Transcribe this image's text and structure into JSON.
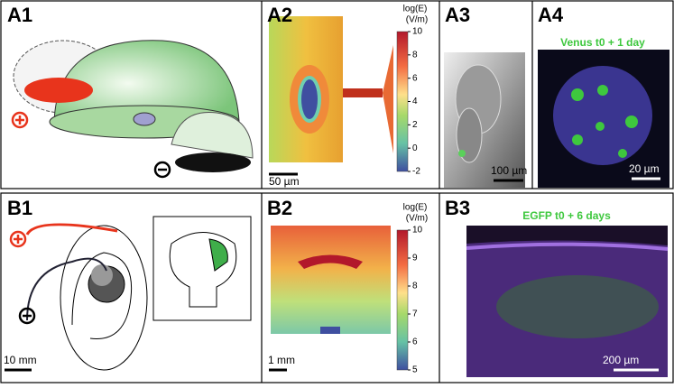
{
  "panels": [
    {
      "label": "A1"
    },
    {
      "label": "A2",
      "scale_bar": "50 µm",
      "colorbar": {
        "title": "log(E)",
        "unit": "(V/m)",
        "ticks": [
          10,
          8,
          6,
          4,
          2,
          0,
          -2
        ]
      }
    },
    {
      "label": "A3",
      "scale_bar": "100 µm"
    },
    {
      "label": "A4",
      "annotation": "Venus t0 + 1 day",
      "scale_bar": "20 µm"
    },
    {
      "label": "B1",
      "scale_bar": "10 mm"
    },
    {
      "label": "B2",
      "scale_bar": "1 mm",
      "colorbar": {
        "title": "log(E)",
        "unit": "(V/m)",
        "ticks": [
          10,
          9,
          8,
          7,
          6,
          5
        ]
      }
    },
    {
      "label": "B3",
      "annotation": "EGFP t0 + 6 days",
      "scale_bar": "200 µm"
    }
  ]
}
